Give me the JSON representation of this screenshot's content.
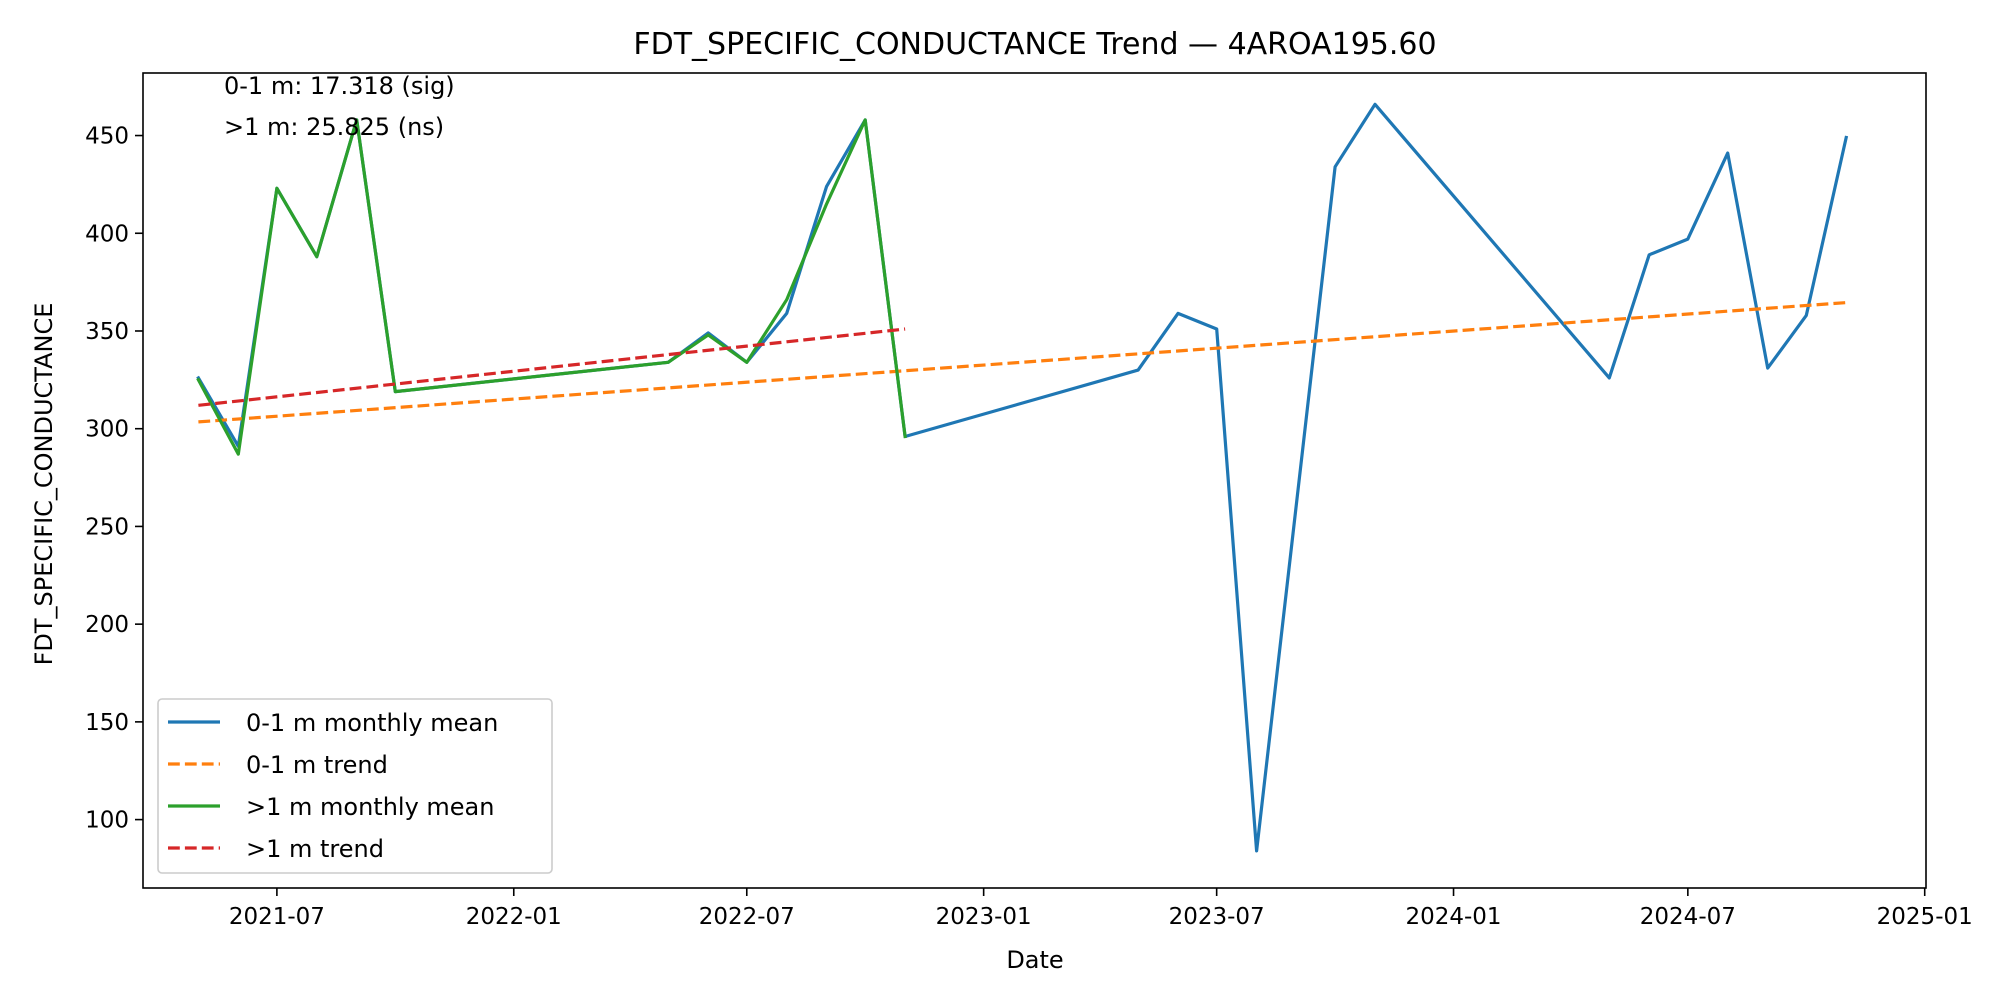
{
  "chart_data": {
    "type": "line",
    "title": "FDT_SPECIFIC_CONDUCTANCE Trend — 4AROA195.60",
    "xlabel": "Date",
    "ylabel": "FDT_SPECIFIC_CONDUCTANCE",
    "xlim": [
      "2021-03-19",
      "2025-01-02"
    ],
    "ylim": [
      65,
      482
    ],
    "x_ticks": [
      "2021-07",
      "2022-01",
      "2022-07",
      "2023-01",
      "2023-07",
      "2024-01",
      "2024-07",
      "2025-01"
    ],
    "y_ticks": [
      100,
      150,
      200,
      250,
      300,
      350,
      400,
      450
    ],
    "grid": false,
    "legend_position": "lower-left",
    "annotations": [
      "0-1 m: 17.318 (sig)",
      ">1 m: 25.825 (ns)"
    ],
    "series": [
      {
        "name": "0-1 m monthly mean",
        "style": "solid",
        "color": "#1f77b4",
        "x": [
          "2021-05-01",
          "2021-06-01",
          "2021-07-01",
          "2021-08-01",
          "2021-09-01",
          "2021-10-01",
          "2022-05-01",
          "2022-06-01",
          "2022-07-01",
          "2022-08-01",
          "2022-09-01",
          "2022-10-01",
          "2022-11-01",
          "2023-05-01",
          "2023-06-01",
          "2023-07-01",
          "2023-08-01",
          "2023-10-01",
          "2023-11-01",
          "2024-05-01",
          "2024-06-01",
          "2024-07-01",
          "2024-08-01",
          "2024-09-01",
          "2024-10-01",
          "2024-11-01"
        ],
        "y": [
          326,
          291,
          423,
          388,
          458,
          319,
          334,
          349,
          334,
          359,
          424,
          458,
          296,
          330,
          359,
          351,
          84,
          434,
          466,
          326,
          389,
          397,
          441,
          331,
          358,
          449
        ]
      },
      {
        "name": "0-1 m trend",
        "style": "dashed",
        "color": "#ff7f0e",
        "x": [
          "2021-05-01",
          "2024-11-01"
        ],
        "y": [
          303.5,
          364.5
        ]
      },
      {
        "name": ">1 m monthly mean",
        "style": "solid",
        "color": "#2ca02c",
        "x": [
          "2021-05-01",
          "2021-06-01",
          "2021-07-01",
          "2021-08-01",
          "2021-09-01",
          "2021-10-01",
          "2022-05-01",
          "2022-06-01",
          "2022-07-01",
          "2022-08-01",
          "2022-09-01",
          "2022-10-01",
          "2022-11-01"
        ],
        "y": [
          325,
          287,
          423,
          388,
          458,
          319,
          334,
          348,
          334,
          366,
          415,
          458,
          296
        ]
      },
      {
        "name": ">1 m trend",
        "style": "dashed",
        "color": "#d62728",
        "x": [
          "2021-05-01",
          "2022-11-01"
        ],
        "y": [
          312,
          351
        ]
      }
    ]
  }
}
